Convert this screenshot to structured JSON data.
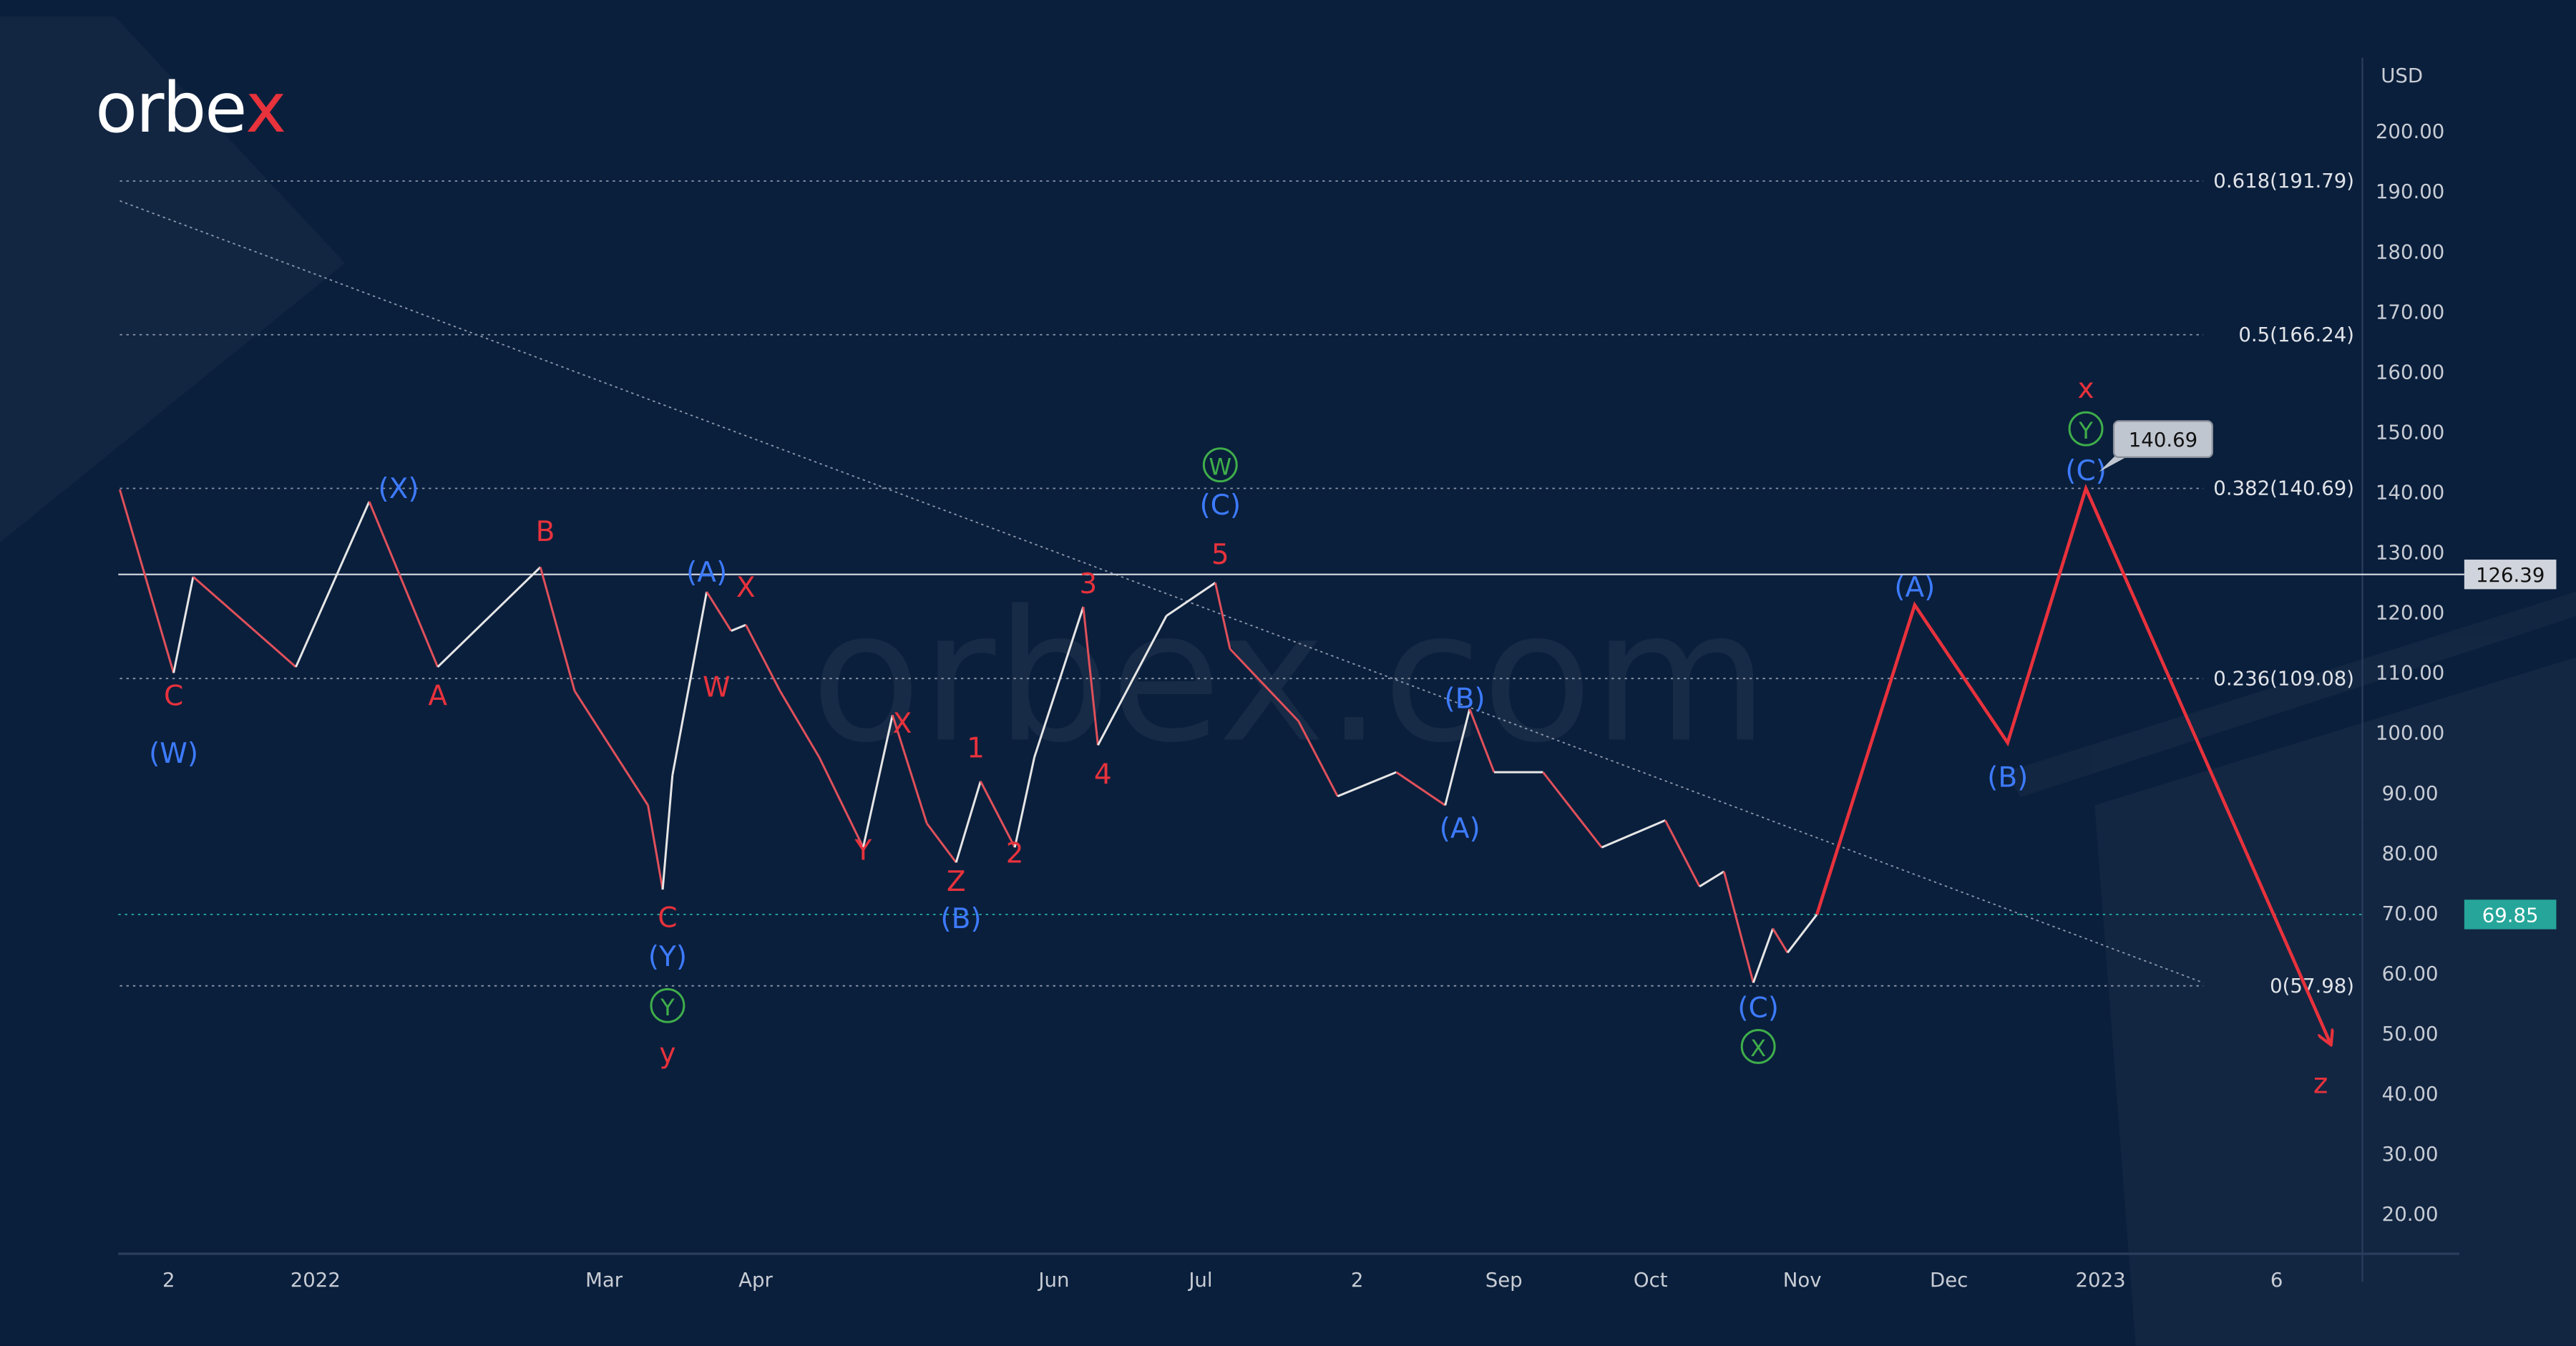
{
  "brand": {
    "logo_text": "orbex",
    "watermark": "orbex.com",
    "accent": "#e8323c"
  },
  "colors": {
    "background": "#0a1f3c",
    "red": "#e8323c",
    "blue": "#3d7bff",
    "green": "#3fae4a",
    "text": "#c8ccd4",
    "current_price_badge": "#26a69a"
  },
  "chart_data": {
    "type": "line",
    "currency": "USD",
    "ylim": [
      15,
      210
    ],
    "y_ticks": [
      "200.00",
      "190.00",
      "180.00",
      "170.00",
      "160.00",
      "150.00",
      "140.00",
      "130.00",
      "120.00",
      "110.00",
      "100.00",
      "90.00",
      "80.00",
      "70.00",
      "60.00",
      "50.00",
      "40.00",
      "30.00",
      "20.00"
    ],
    "x_ticks": [
      {
        "label": "2",
        "date": "2021-12-02"
      },
      {
        "label": "2022",
        "date": "2022-01-01"
      },
      {
        "label": "Mar",
        "date": "2022-03-01"
      },
      {
        "label": "Apr",
        "date": "2022-04-01"
      },
      {
        "label": "Jun",
        "date": "2022-06-01"
      },
      {
        "label": "Jul",
        "date": "2022-07-01"
      },
      {
        "label": "2",
        "date": "2022-08-02"
      },
      {
        "label": "Sep",
        "date": "2022-09-01"
      },
      {
        "label": "Oct",
        "date": "2022-10-01"
      },
      {
        "label": "Nov",
        "date": "2022-11-01"
      },
      {
        "label": "Dec",
        "date": "2022-12-01"
      },
      {
        "label": "2023",
        "date": "2023-01-01"
      },
      {
        "label": "6",
        "date": "2023-02-06"
      }
    ],
    "price_series": [
      [
        "2021-11-22",
        140.5
      ],
      [
        "2021-12-03",
        110
      ],
      [
        "2021-12-07",
        126
      ],
      [
        "2021-12-28",
        111
      ],
      [
        "2022-01-12",
        138.5
      ],
      [
        "2022-01-26",
        111
      ],
      [
        "2022-02-16",
        127.6
      ],
      [
        "2022-02-23",
        107
      ],
      [
        "2022-03-10",
        88
      ],
      [
        "2022-03-13",
        74
      ],
      [
        "2022-03-15",
        93
      ],
      [
        "2022-03-22",
        123.5
      ],
      [
        "2022-03-27",
        117
      ],
      [
        "2022-03-30",
        118
      ],
      [
        "2022-04-06",
        107
      ],
      [
        "2022-04-14",
        96
      ],
      [
        "2022-04-23",
        81
      ],
      [
        "2022-04-29",
        103
      ],
      [
        "2022-05-06",
        85
      ],
      [
        "2022-05-12",
        78.5
      ],
      [
        "2022-05-17",
        92
      ],
      [
        "2022-05-24",
        81
      ],
      [
        "2022-05-28",
        96
      ],
      [
        "2022-06-07",
        121
      ],
      [
        "2022-06-10",
        98
      ],
      [
        "2022-06-24",
        119.5
      ],
      [
        "2022-07-04",
        125
      ],
      [
        "2022-07-07",
        114
      ],
      [
        "2022-07-21",
        102
      ],
      [
        "2022-07-29",
        89.5
      ],
      [
        "2022-08-10",
        93.5
      ],
      [
        "2022-08-20",
        88
      ],
      [
        "2022-08-25",
        104
      ],
      [
        "2022-08-30",
        93.5
      ],
      [
        "2022-09-09",
        93.5
      ],
      [
        "2022-09-21",
        81
      ],
      [
        "2022-10-04",
        85.5
      ],
      [
        "2022-10-11",
        74.5
      ],
      [
        "2022-10-16",
        77
      ],
      [
        "2022-10-22",
        58.5
      ],
      [
        "2022-10-26",
        67.5
      ],
      [
        "2022-10-29",
        63.5
      ],
      [
        "2022-11-04",
        69.85
      ]
    ],
    "projection": [
      [
        "2022-11-04",
        69.85
      ],
      [
        "2022-11-24",
        121.3
      ],
      [
        "2022-12-13",
        98.4
      ],
      [
        "2022-12-29",
        140.69
      ],
      [
        "2023-02-17",
        48.4
      ]
    ],
    "trendline": [
      [
        "2021-11-22",
        188.5
      ],
      [
        "2023-01-22",
        58.5
      ]
    ],
    "fib_range": [
      "2021-11-22",
      "2023-01-22"
    ],
    "fib_levels": [
      {
        "label": "0.618(191.79)",
        "value": 191.79
      },
      {
        "label": "0.5(166.24)",
        "value": 166.24
      },
      {
        "label": "0.382(140.69)",
        "value": 140.69
      },
      {
        "label": "0.236(109.08)",
        "value": 109.08
      },
      {
        "label": "0(57.98)",
        "value": 57.98
      }
    ],
    "horizontal_level": {
      "label": "126.39",
      "value": 126.39
    },
    "current_price": {
      "label": "69.85",
      "value": 69.85
    },
    "callout": {
      "label": "140.69",
      "date": "2022-12-29",
      "value": 140.69
    },
    "wave_labels": [
      {
        "text": "C",
        "color": "red",
        "date": "2021-12-03",
        "price": 106.3
      },
      {
        "text": "(W)",
        "color": "blue",
        "date": "2021-12-03",
        "price": 96.7
      },
      {
        "text": "(X)",
        "color": "blue",
        "date": "2022-01-18",
        "price": 140.7
      },
      {
        "text": "A",
        "color": "red",
        "date": "2022-01-26",
        "price": 106.3
      },
      {
        "text": "B",
        "color": "red",
        "date": "2022-02-17",
        "price": 133.6
      },
      {
        "text": "(A)",
        "color": "blue",
        "date": "2022-03-22",
        "price": 126.8
      },
      {
        "text": "X",
        "color": "red",
        "date": "2022-03-30",
        "price": 124.3
      },
      {
        "text": "W",
        "color": "red",
        "date": "2022-03-24",
        "price": 107.7
      },
      {
        "text": "C",
        "color": "red",
        "date": "2022-03-14",
        "price": 69.4
      },
      {
        "text": "(Y)",
        "color": "blue",
        "date": "2022-03-14",
        "price": 62.9
      },
      {
        "text": "Y",
        "color": "green",
        "circle": true,
        "date": "2022-03-14",
        "price": 54.7
      },
      {
        "text": "y",
        "color": "red",
        "date": "2022-03-14",
        "price": 46.8
      },
      {
        "text": "X",
        "color": "red",
        "date": "2022-05-01",
        "price": 101.7
      },
      {
        "text": "Y",
        "color": "red",
        "date": "2022-04-23",
        "price": 80.6
      },
      {
        "text": "1",
        "color": "red",
        "date": "2022-05-16",
        "price": 97.6
      },
      {
        "text": "Z",
        "color": "red",
        "date": "2022-05-12",
        "price": 75.4
      },
      {
        "text": "2",
        "color": "red",
        "date": "2022-05-24",
        "price": 80.1
      },
      {
        "text": "(B)",
        "color": "blue",
        "date": "2022-05-13",
        "price": 69.2
      },
      {
        "text": "3",
        "color": "red",
        "date": "2022-06-08",
        "price": 124.9
      },
      {
        "text": "4",
        "color": "red",
        "date": "2022-06-11",
        "price": 93.2
      },
      {
        "text": "W",
        "color": "green",
        "circle": true,
        "date": "2022-07-05",
        "price": 144.6
      },
      {
        "text": "(C)",
        "color": "blue",
        "date": "2022-07-05",
        "price": 138.0
      },
      {
        "text": "5",
        "color": "red",
        "date": "2022-07-05",
        "price": 129.8
      },
      {
        "text": "(B)",
        "color": "blue",
        "date": "2022-08-24",
        "price": 105.8
      },
      {
        "text": "(A)",
        "color": "blue",
        "date": "2022-08-23",
        "price": 84.2
      },
      {
        "text": "(C)",
        "color": "blue",
        "date": "2022-10-23",
        "price": 54.4
      },
      {
        "text": "X",
        "color": "green",
        "circle": true,
        "date": "2022-10-23",
        "price": 47.9
      },
      {
        "text": "(A)",
        "color": "blue",
        "date": "2022-11-24",
        "price": 124.3
      },
      {
        "text": "(B)",
        "color": "blue",
        "date": "2022-12-13",
        "price": 92.7
      },
      {
        "text": "x",
        "color": "red",
        "date": "2022-12-29",
        "price": 157.4
      },
      {
        "text": "Y",
        "color": "green",
        "circle": true,
        "date": "2022-12-29",
        "price": 150.6
      },
      {
        "text": "(C)",
        "color": "blue",
        "date": "2022-12-29",
        "price": 143.7
      },
      {
        "text": "z",
        "color": "red",
        "date": "2023-02-15",
        "price": 41.8
      }
    ]
  }
}
